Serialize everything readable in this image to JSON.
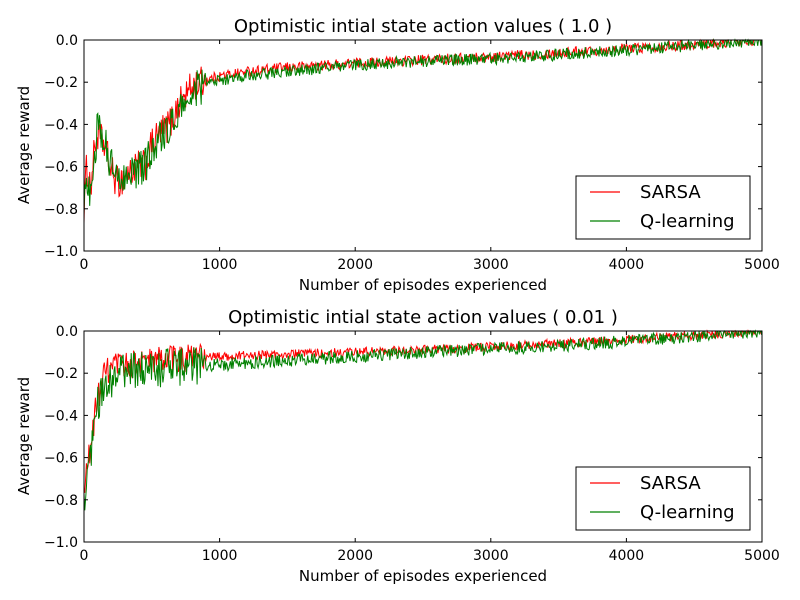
{
  "chart_data": [
    {
      "type": "line",
      "title": "Optimistic intial state action values ( 1.0 )",
      "xlabel": "Number of episodes experienced",
      "ylabel": "Average reward",
      "xlim": [
        0,
        5000
      ],
      "ylim": [
        -1.0,
        0.0
      ],
      "xticks": [
        "0",
        "1000",
        "2000",
        "3000",
        "4000",
        "5000"
      ],
      "yticks": [
        "−1.0",
        "−0.8",
        "−0.6",
        "−0.4",
        "−0.2",
        "0.0"
      ],
      "legend_position": "lower-right",
      "grid": false,
      "series": [
        {
          "name": "SARSA",
          "color": "#ff0000",
          "noise": 0.025,
          "x": [
            0,
            20,
            50,
            80,
            100,
            150,
            200,
            250,
            300,
            350,
            400,
            450,
            500,
            550,
            600,
            650,
            700,
            750,
            800,
            900,
            1000,
            1200,
            1500,
            2000,
            2500,
            3000,
            3500,
            4000,
            4500,
            5000
          ],
          "y": [
            -0.8,
            -0.6,
            -0.7,
            -0.5,
            -0.45,
            -0.5,
            -0.62,
            -0.68,
            -0.65,
            -0.62,
            -0.6,
            -0.6,
            -0.5,
            -0.45,
            -0.42,
            -0.38,
            -0.3,
            -0.26,
            -0.22,
            -0.19,
            -0.17,
            -0.15,
            -0.13,
            -0.11,
            -0.095,
            -0.08,
            -0.06,
            -0.04,
            -0.02,
            0.0
          ]
        },
        {
          "name": "Q-learning",
          "color": "#008000",
          "noise": 0.028,
          "x": [
            0,
            20,
            50,
            80,
            100,
            150,
            200,
            250,
            300,
            350,
            400,
            450,
            500,
            550,
            600,
            650,
            700,
            750,
            800,
            900,
            1000,
            1200,
            1500,
            2000,
            2500,
            3000,
            3500,
            4000,
            4500,
            5000
          ],
          "y": [
            -0.8,
            -0.65,
            -0.72,
            -0.55,
            -0.4,
            -0.48,
            -0.6,
            -0.67,
            -0.63,
            -0.6,
            -0.62,
            -0.6,
            -0.52,
            -0.48,
            -0.45,
            -0.4,
            -0.35,
            -0.3,
            -0.24,
            -0.21,
            -0.19,
            -0.17,
            -0.15,
            -0.12,
            -0.1,
            -0.09,
            -0.07,
            -0.05,
            -0.025,
            0.0
          ]
        }
      ]
    },
    {
      "type": "line",
      "title": "Optimistic intial state action values ( 0.01 )",
      "xlabel": "Number of episodes experienced",
      "ylabel": "Average reward",
      "xlim": [
        0,
        5000
      ],
      "ylim": [
        -1.0,
        0.0
      ],
      "xticks": [
        "0",
        "1000",
        "2000",
        "3000",
        "4000",
        "5000"
      ],
      "yticks": [
        "−1.0",
        "−0.8",
        "−0.6",
        "−0.4",
        "−0.2",
        "0.0"
      ],
      "legend_position": "lower-right",
      "grid": false,
      "series": [
        {
          "name": "SARSA",
          "color": "#ff0000",
          "noise": 0.022,
          "x": [
            0,
            20,
            50,
            80,
            100,
            130,
            160,
            200,
            300,
            500,
            700,
            1000,
            1500,
            2000,
            2500,
            3000,
            3500,
            4000,
            4500,
            5000
          ],
          "y": [
            -0.8,
            -0.65,
            -0.55,
            -0.4,
            -0.32,
            -0.25,
            -0.2,
            -0.18,
            -0.16,
            -0.14,
            -0.13,
            -0.12,
            -0.11,
            -0.1,
            -0.09,
            -0.075,
            -0.06,
            -0.04,
            -0.02,
            0.0
          ]
        },
        {
          "name": "Q-learning",
          "color": "#008000",
          "noise": 0.03,
          "x": [
            0,
            20,
            50,
            80,
            100,
            130,
            160,
            200,
            300,
            500,
            700,
            1000,
            1500,
            2000,
            2500,
            3000,
            3500,
            4000,
            4500,
            5000
          ],
          "y": [
            -0.85,
            -0.68,
            -0.6,
            -0.48,
            -0.36,
            -0.28,
            -0.24,
            -0.22,
            -0.2,
            -0.18,
            -0.17,
            -0.16,
            -0.14,
            -0.12,
            -0.1,
            -0.085,
            -0.07,
            -0.05,
            -0.025,
            0.0
          ]
        }
      ]
    }
  ]
}
